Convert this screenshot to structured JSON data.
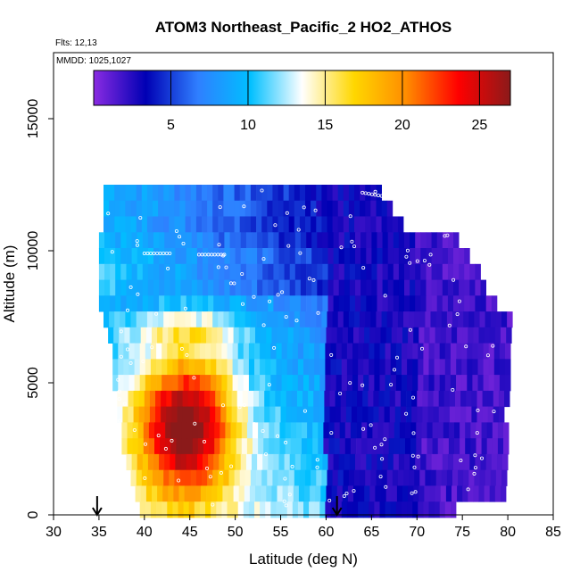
{
  "chart_data": {
    "type": "heatmap",
    "title": "ATOM3 Northeast_Pacific_2 HO2_ATHOS",
    "annotations": {
      "flights": "Flts: 12,13",
      "dates": "MMDD: 1025,1027"
    },
    "xlabel": "Latitude (deg N)",
    "ylabel": "Altitude (m)",
    "xlim": [
      30,
      85
    ],
    "ylim": [
      0,
      17500
    ],
    "x_ticks": [
      30,
      35,
      40,
      45,
      50,
      55,
      60,
      65,
      70,
      75,
      80,
      85
    ],
    "x_tick_labels": [
      "30",
      "35",
      "40",
      "45",
      "50",
      "55",
      "60",
      "65",
      "70",
      "75",
      "80",
      "85"
    ],
    "y_ticks": [
      0,
      5000,
      10000,
      15000
    ],
    "y_tick_labels": [
      "0",
      "5000",
      "10000",
      "15000"
    ],
    "colorbar": {
      "range": [
        0,
        27
      ],
      "ticks": [
        5,
        10,
        15,
        20,
        25
      ],
      "tick_labels": [
        "5",
        "10",
        "15",
        "20",
        "25"
      ],
      "colors": [
        "#8a2be2",
        "#0000b4",
        "#2f7fff",
        "#00bfff",
        "#ffffff",
        "#ffd700",
        "#ff8c00",
        "#ff0000",
        "#8b1a1a"
      ]
    },
    "arrows_latitude": [
      34.8,
      61.2
    ],
    "altitude_bins": [
      {
        "alt": 12200,
        "lat_min": 35.5,
        "lat_max": 66.0
      },
      {
        "alt": 11600,
        "lat_min": 35.5,
        "lat_max": 67.0
      },
      {
        "alt": 11000,
        "lat_min": 35.5,
        "lat_max": 68.5
      },
      {
        "alt": 10400,
        "lat_min": 35.0,
        "lat_max": 74.0
      },
      {
        "alt": 9800,
        "lat_min": 35.0,
        "lat_max": 75.5
      },
      {
        "alt": 9200,
        "lat_min": 35.0,
        "lat_max": 76.5
      },
      {
        "alt": 8600,
        "lat_min": 35.0,
        "lat_max": 77.5
      },
      {
        "alt": 8000,
        "lat_min": 35.0,
        "lat_max": 78.5
      },
      {
        "alt": 7400,
        "lat_min": 35.5,
        "lat_max": 80.0
      },
      {
        "alt": 6800,
        "lat_min": 36.0,
        "lat_max": 80.0
      },
      {
        "alt": 6200,
        "lat_min": 36.5,
        "lat_max": 80.0
      },
      {
        "alt": 5600,
        "lat_min": 36.5,
        "lat_max": 80.0
      },
      {
        "alt": 5000,
        "lat_min": 36.5,
        "lat_max": 80.0
      },
      {
        "alt": 4400,
        "lat_min": 37.0,
        "lat_max": 80.0
      },
      {
        "alt": 3800,
        "lat_min": 37.0,
        "lat_max": 79.5
      },
      {
        "alt": 3200,
        "lat_min": 37.5,
        "lat_max": 79.5
      },
      {
        "alt": 2600,
        "lat_min": 37.5,
        "lat_max": 79.5
      },
      {
        "alt": 2000,
        "lat_min": 38.0,
        "lat_max": 79.5
      },
      {
        "alt": 1400,
        "lat_min": 38.5,
        "lat_max": 79.5
      },
      {
        "alt": 800,
        "lat_min": 39.0,
        "lat_max": 79.5
      },
      {
        "alt": 200,
        "lat_min": 39.5,
        "lat_max": 74.0
      }
    ]
  }
}
